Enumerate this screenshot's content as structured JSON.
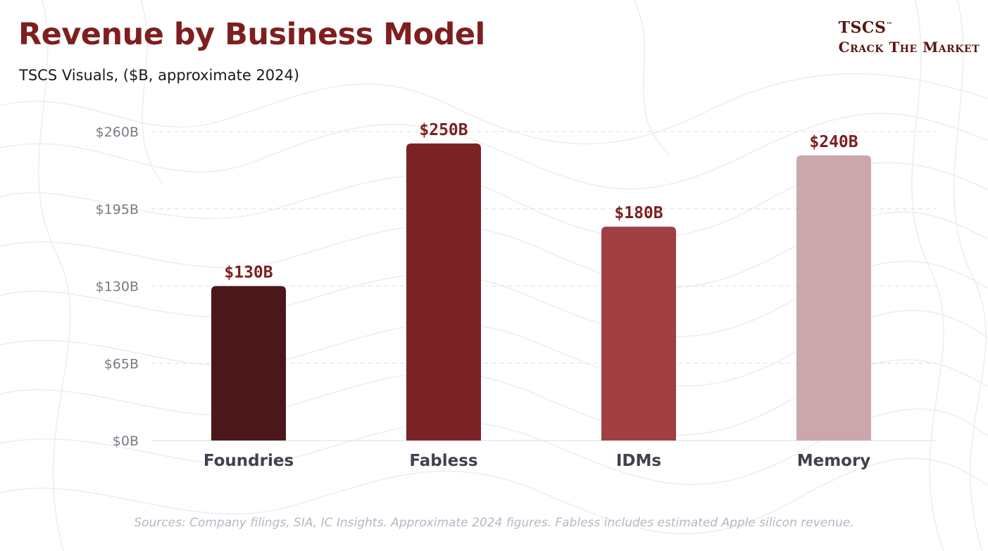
{
  "header": {
    "title": "Revenue by Business Model",
    "subtitle": "TSCS Visuals, ($B, approximate 2024)"
  },
  "brand": {
    "name": "TSCS",
    "trademark": "™",
    "tagline": "Crack The Market"
  },
  "footer": {
    "sources": "Sources: Company filings, SIA, IC Insights. Approximate 2024 figures. Fabless includes estimated Apple silicon revenue."
  },
  "colors": {
    "title": "#7e1f1f",
    "value_label": "#7e1f1f",
    "category_label": "#3f4150",
    "tick_label": "#7a7a86",
    "gridline": "#e3e3e8",
    "bars": [
      "#4a181a",
      "#7a2326",
      "#a13f43",
      "#cba7ac"
    ]
  },
  "chart_data": {
    "type": "bar",
    "title": "Revenue by Business Model",
    "subtitle": "TSCS Visuals, ($B, approximate 2024)",
    "xlabel": "",
    "ylabel": "",
    "categories": [
      "Foundries",
      "Fabless",
      "IDMs",
      "Memory"
    ],
    "values": [
      130,
      250,
      180,
      240
    ],
    "value_labels": [
      "$130B",
      "$250B",
      "$180B",
      "$240B"
    ],
    "unit": "$B",
    "ylim": [
      0,
      260
    ],
    "yticks": [
      0,
      65,
      130,
      195,
      260
    ],
    "ytick_labels": [
      "$0B",
      "$65B",
      "$130B",
      "$195B",
      "$260B"
    ],
    "grid": true,
    "legend": "none"
  }
}
